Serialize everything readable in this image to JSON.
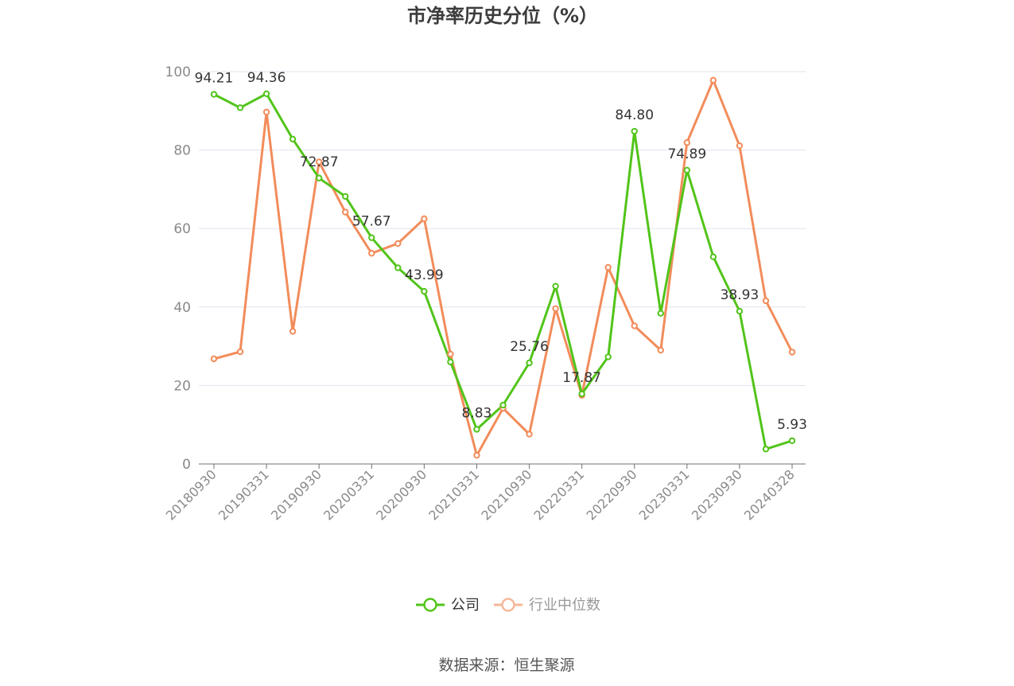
{
  "chart_data": {
    "type": "line",
    "title": "市净率历史分位（%）",
    "ylim": [
      0,
      100
    ],
    "yticks": [
      0,
      20,
      40,
      60,
      80,
      100
    ],
    "x": [
      "20180930",
      "20181231",
      "20190331",
      "20190630",
      "20190930",
      "20191231",
      "20200331",
      "20200630",
      "20200930",
      "20201231",
      "20210331",
      "20210630",
      "20210930",
      "20211231",
      "20220331",
      "20220630",
      "20220930",
      "20221231",
      "20230331",
      "20230630",
      "20230930",
      "20231231",
      "20240328"
    ],
    "xtick_labels": [
      "20180930",
      "20190331",
      "20190930",
      "20200331",
      "20200930",
      "20210331",
      "20210930",
      "20220331",
      "20220930",
      "20230331",
      "20230930",
      "20240328"
    ],
    "series": [
      {
        "name": "公司",
        "color": "#52c41a",
        "values": [
          94.21,
          90.8,
          94.36,
          82.8,
          72.87,
          68.2,
          57.67,
          50.0,
          43.99,
          26.0,
          8.83,
          15.0,
          25.76,
          45.3,
          17.87,
          27.3,
          84.8,
          38.4,
          74.89,
          52.8,
          38.93,
          3.8,
          5.93
        ],
        "labels": {
          "0": "94.21",
          "2": "94.36",
          "4": "72.87",
          "6": "57.67",
          "8": "43.99",
          "10": "8.83",
          "12": "25.76",
          "14": "17.87",
          "16": "84.80",
          "18": "74.89",
          "20": "38.93",
          "22": "5.93"
        }
      },
      {
        "name": "行业中位数",
        "color": "#f28c5b",
        "values": [
          26.8,
          28.6,
          89.7,
          33.8,
          77.0,
          64.2,
          53.7,
          56.2,
          62.5,
          28.0,
          2.2,
          14.2,
          7.6,
          39.6,
          17.5,
          50.1,
          35.2,
          29.0,
          81.9,
          97.8,
          81.1,
          41.6,
          28.5
        ]
      }
    ],
    "legend": {
      "position": "bottom"
    },
    "grid": true
  },
  "source": "数据来源：恒生聚源"
}
